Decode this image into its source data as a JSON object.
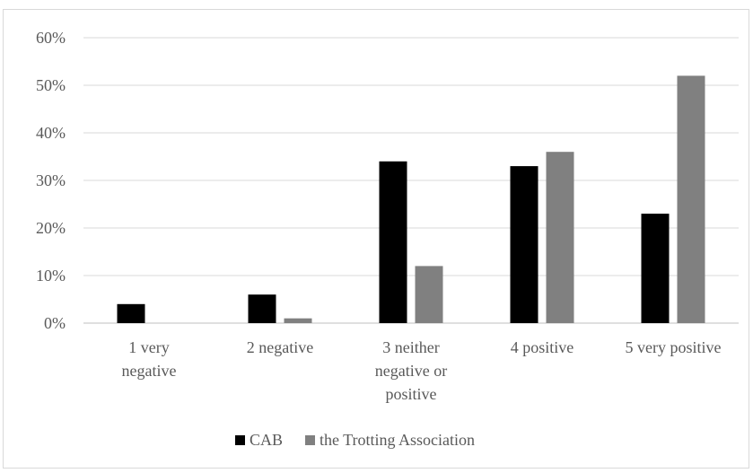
{
  "chart_data": {
    "type": "bar",
    "categories": [
      [
        "1 very",
        "negative"
      ],
      [
        "2 negative"
      ],
      [
        "3 neither",
        "negative or",
        "positive"
      ],
      [
        "4 positive"
      ],
      [
        "5 very positive"
      ]
    ],
    "series": [
      {
        "name": "CAB",
        "values": [
          4,
          6,
          34,
          33,
          23
        ],
        "color": "#000000"
      },
      {
        "name": "the Trotting Association",
        "values": [
          0,
          1,
          12,
          36,
          52
        ],
        "color": "#808080"
      }
    ],
    "y_ticks": [
      "0%",
      "10%",
      "20%",
      "30%",
      "40%",
      "50%",
      "60%"
    ],
    "ylim": [
      0,
      60
    ],
    "grid": true,
    "legend_position": "bottom",
    "title": "",
    "xlabel": "",
    "ylabel": ""
  }
}
